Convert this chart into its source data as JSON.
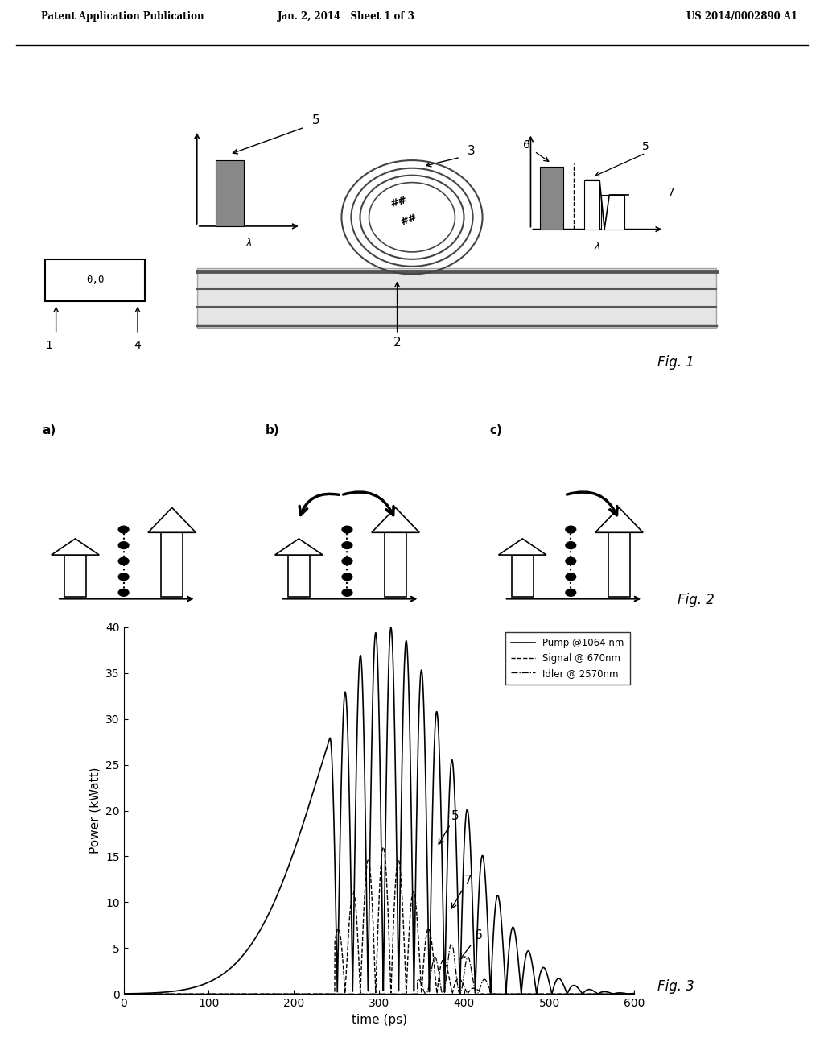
{
  "header_left": "Patent Application Publication",
  "header_mid": "Jan. 2, 2014   Sheet 1 of 3",
  "header_right": "US 2014/0002890 A1",
  "fig1_label": "Fig. 1",
  "fig2_label": "Fig. 2",
  "fig3_label": "Fig. 3",
  "fig3_xlabel": "time (ps)",
  "fig3_ylabel": "Power (kWatt)",
  "fig3_xlim": [
    0,
    600
  ],
  "fig3_ylim": [
    0,
    40
  ],
  "fig3_xticks": [
    0,
    100,
    200,
    300,
    400,
    500,
    600
  ],
  "fig3_yticks": [
    0,
    5,
    10,
    15,
    20,
    25,
    30,
    35,
    40
  ],
  "legend_entries": [
    "Pump @1064 nm",
    "Signal @ 670nm",
    "Idler @ 2570nm"
  ],
  "bg_color": "#ffffff"
}
